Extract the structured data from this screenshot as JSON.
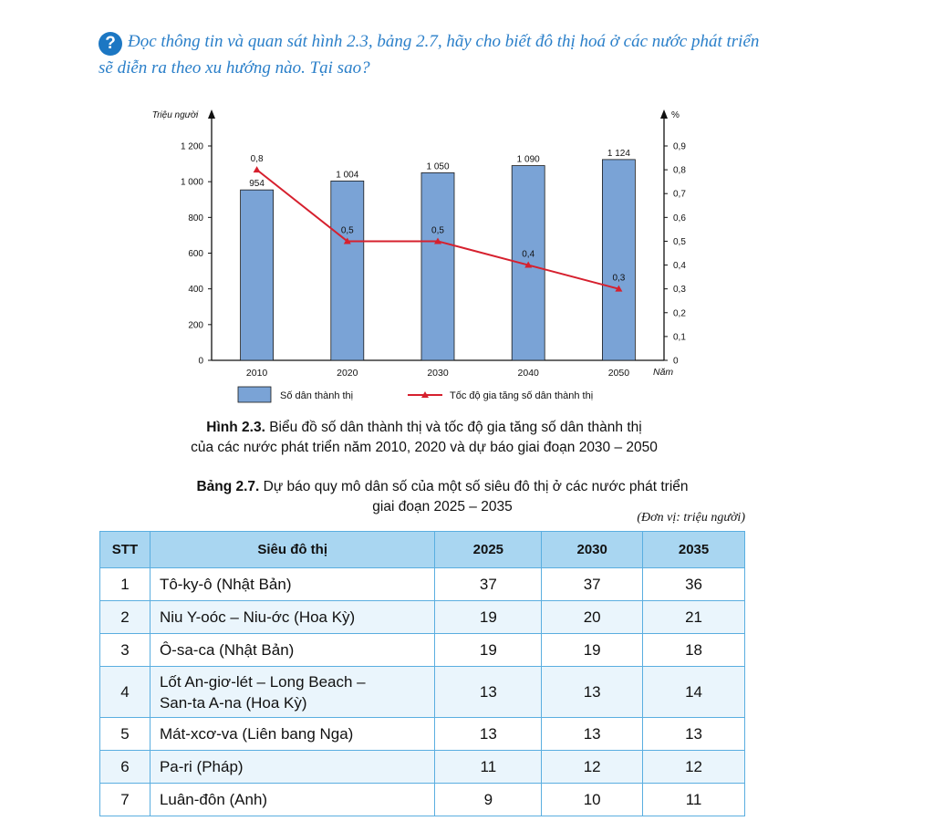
{
  "question": {
    "icon": "question-circle-icon",
    "text": "Đọc thông tin và quan sát hình 2.3, bảng 2.7, hãy cho biết đô thị hoá ở các nước phát triển sẽ diễn ra theo xu hướng nào. Tại sao?"
  },
  "chart_data": {
    "type": "bar",
    "categories": [
      "2010",
      "2020",
      "2030",
      "2040",
      "2050"
    ],
    "x_axis_label": "Năm",
    "y_left": {
      "label": "Triệu người",
      "ticks": [
        "0",
        "200",
        "400",
        "600",
        "800",
        "1 000",
        "1 200"
      ],
      "range": [
        0,
        1200
      ]
    },
    "y_right": {
      "label": "%",
      "ticks": [
        "0",
        "0,1",
        "0,2",
        "0,3",
        "0,4",
        "0,5",
        "0,6",
        "0,7",
        "0,8",
        "0,9"
      ],
      "range": [
        0,
        0.9
      ]
    },
    "series": [
      {
        "name": "Số dân thành thị",
        "kind": "bar",
        "axis": "left",
        "color": "#7aa3d6",
        "values": [
          954,
          1004,
          1050,
          1090,
          1124
        ],
        "labels": [
          "954",
          "1 004",
          "1 050",
          "1 090",
          "1 124"
        ]
      },
      {
        "name": "Tốc độ gia tăng số dân thành thị",
        "kind": "line",
        "axis": "right",
        "color": "#d6202e",
        "values": [
          0.8,
          0.5,
          0.5,
          0.4,
          0.3
        ],
        "labels": [
          "0,8",
          "0,5",
          "0,5",
          "0,4",
          "0,3"
        ]
      }
    ],
    "legend_position": "bottom"
  },
  "figure_caption": {
    "bold": "Hình 2.3.",
    "line1": " Biểu đồ số dân thành thị và tốc độ gia tăng số dân thành thị",
    "line2": "của các nước phát triển năm 2010, 2020 và dự báo giai đoạn 2030 – 2050"
  },
  "table_caption": {
    "bold": "Bảng 2.7.",
    "line1": " Dự báo quy mô dân số của một số siêu đô thị ở các nước phát triển",
    "line2": "giai đoạn 2025 – 2035"
  },
  "table_unit": "(Đơn vị: triệu người)",
  "table": {
    "headers": [
      "STT",
      "Siêu đô thị",
      "2025",
      "2030",
      "2035"
    ],
    "rows": [
      {
        "stt": "1",
        "name": "Tô-ky-ô (Nhật Bản)",
        "v2025": "37",
        "v2030": "37",
        "v2035": "36"
      },
      {
        "stt": "2",
        "name": "Niu Y-oóc – Niu-ớc (Hoa Kỳ)",
        "v2025": "19",
        "v2030": "20",
        "v2035": "21"
      },
      {
        "stt": "3",
        "name": "Ô-sa-ca (Nhật Bản)",
        "v2025": "19",
        "v2030": "19",
        "v2035": "18"
      },
      {
        "stt": "4",
        "name": "Lốt An-giơ-lét – Long Beach –",
        "name2": "San-ta A-na (Hoa Kỳ)",
        "v2025": "13",
        "v2030": "13",
        "v2035": "14"
      },
      {
        "stt": "5",
        "name": "Mát-xcơ-va (Liên bang Nga)",
        "v2025": "13",
        "v2030": "13",
        "v2035": "13"
      },
      {
        "stt": "6",
        "name": "Pa-ri (Pháp)",
        "v2025": "11",
        "v2030": "12",
        "v2035": "12"
      },
      {
        "stt": "7",
        "name": "Luân-đôn (Anh)",
        "v2025": "9",
        "v2030": "10",
        "v2035": "11"
      }
    ]
  }
}
